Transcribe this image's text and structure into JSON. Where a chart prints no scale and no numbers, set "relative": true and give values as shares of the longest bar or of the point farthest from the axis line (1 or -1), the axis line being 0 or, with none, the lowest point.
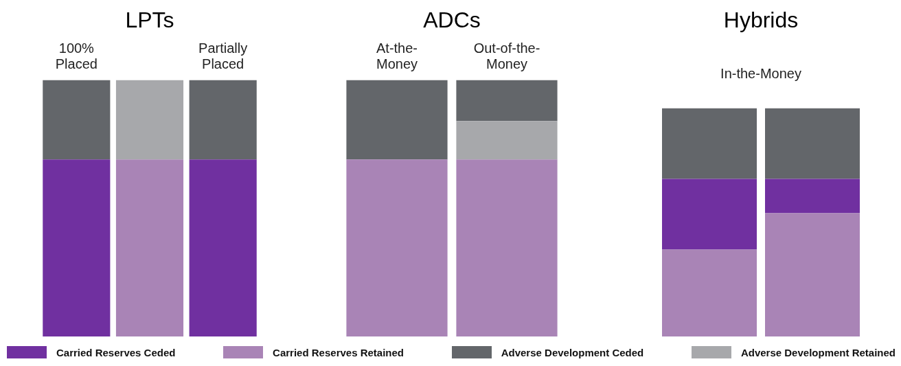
{
  "chart_data": [
    {
      "type": "bar",
      "title": "LPTs",
      "stacked": true,
      "relative": true,
      "legend": "bottom",
      "categories": [
        "100% Placed",
        null,
        "Partially Placed"
      ],
      "series": [
        {
          "name": "Carried Reserves Ceded",
          "color": "#7030a0",
          "values": [
            0.69,
            null,
            0.69
          ]
        },
        {
          "name": "Carried Reserves Retained",
          "color": "#a984b6",
          "values": [
            null,
            0.69,
            null
          ]
        },
        {
          "name": "Adverse Development Ceded",
          "color": "#63666a",
          "values": [
            0.31,
            null,
            0.31
          ]
        },
        {
          "name": "Adverse Development Retained",
          "color": "#a7a8ab",
          "values": [
            null,
            0.31,
            null
          ]
        }
      ]
    },
    {
      "type": "bar",
      "title": "ADCs",
      "stacked": true,
      "relative": true,
      "categories": [
        "At-the-Money",
        "Out-of-the-Money"
      ],
      "series": [
        {
          "color": "#a984b6",
          "values": [
            0.69,
            0.69
          ]
        },
        {
          "color": "#a7a8ab",
          "values": [
            null,
            0.15
          ]
        },
        {
          "color": "#63666a",
          "values": [
            0.31,
            0.16
          ]
        }
      ]
    },
    {
      "type": "bar",
      "title": "Hybrids",
      "subtitle": "In-the-Money",
      "stacked": true,
      "relative": true,
      "categories": [
        null,
        null
      ],
      "series": [
        {
          "color": "#a984b6",
          "values": [
            0.38,
            0.54
          ]
        },
        {
          "color": "#7030a0",
          "values": [
            0.31,
            0.15
          ]
        },
        {
          "color": "#63666a",
          "values": [
            0.31,
            0.31
          ]
        }
      ]
    }
  ]
}
